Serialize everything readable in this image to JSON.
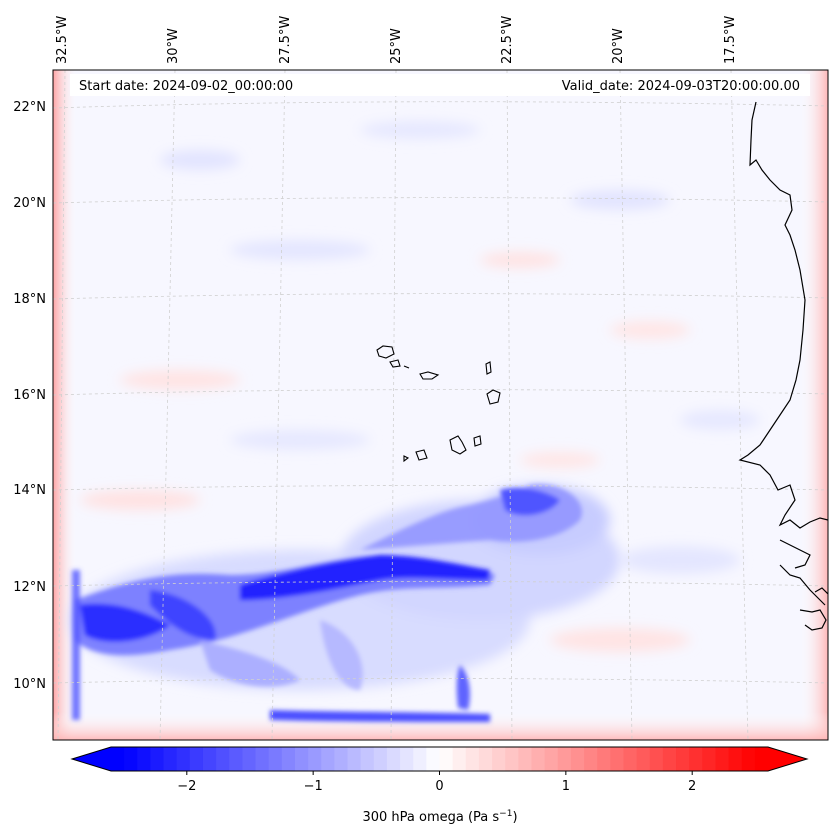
{
  "header": {
    "start_date": "Start date: 2024-09-02_00:00:00",
    "valid_date": "Valid_date: 2024-09-03T20:00:00.00"
  },
  "lon_labels": [
    "32.5°W",
    "30°W",
    "27.5°W",
    "25°W",
    "22.5°W",
    "20°W",
    "17.5°W"
  ],
  "lat_labels": [
    "22°N",
    "20°N",
    "18°N",
    "16°N",
    "14°N",
    "12°N",
    "10°N"
  ],
  "colorbar": {
    "ticks": [
      "−2",
      "−1",
      "0",
      "1",
      "2"
    ],
    "label_main": "300 hPa omega (Pa s",
    "label_sup": "−1",
    "label_end": ")",
    "min": -2.6,
    "max": 2.6,
    "colors": {
      "negative": "#0000ff",
      "zero": "#ffffff",
      "positive": "#ff0000"
    }
  },
  "map": {
    "background": "#f7f7ff",
    "coast_color": "#000000",
    "grid_color": "#cfcfcf"
  }
}
